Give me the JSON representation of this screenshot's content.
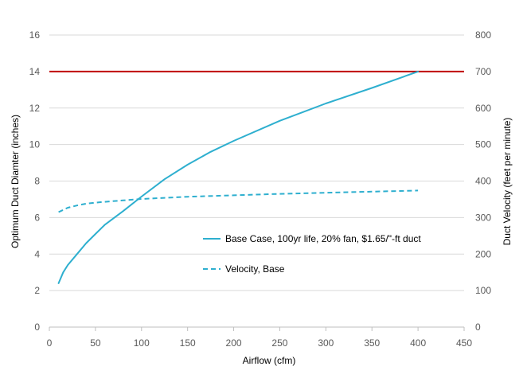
{
  "chart_data": {
    "type": "line",
    "title": "",
    "xlabel": "Airflow (cfm)",
    "ylabel": "Optimum Duct Diamter (inches)",
    "y2label": "Duct Velocity (feet per minute)",
    "xlim": [
      0,
      450
    ],
    "ylim": [
      0,
      16
    ],
    "y2lim": [
      0,
      800
    ],
    "x_ticks": [
      0,
      50,
      100,
      150,
      200,
      250,
      300,
      350,
      400,
      450
    ],
    "y_ticks": [
      0,
      2,
      4,
      6,
      8,
      10,
      12,
      14,
      16
    ],
    "y2_ticks": [
      0,
      100,
      200,
      300,
      400,
      500,
      600,
      700,
      800
    ],
    "grid": true,
    "legend_position": "center-right",
    "reference_line": {
      "axis": "y",
      "value": 14,
      "color": "#C00000"
    },
    "series": [
      {
        "name": "Base Case, 100yr life, 20% fan, $1.65/\"-ft duct",
        "axis": "left",
        "style": "solid",
        "color": "#2EAFCF",
        "x": [
          10,
          15,
          20,
          30,
          40,
          50,
          60,
          80,
          100,
          125,
          150,
          175,
          200,
          250,
          300,
          350,
          400
        ],
        "y": [
          2.4,
          3.0,
          3.4,
          4.0,
          4.6,
          5.1,
          5.6,
          6.35,
          7.15,
          8.1,
          8.9,
          9.6,
          10.2,
          11.3,
          12.25,
          13.1,
          14.0
        ]
      },
      {
        "name": "Velocity, Base",
        "axis": "right",
        "style": "dashed",
        "color": "#2EAFCF",
        "x": [
          10,
          20,
          30,
          40,
          50,
          60,
          80,
          100,
          125,
          150,
          200,
          250,
          300,
          350,
          400
        ],
        "y": [
          315,
          327,
          333,
          338,
          341,
          343,
          347,
          351,
          354,
          357,
          361,
          365,
          368,
          371,
          374
        ]
      }
    ]
  }
}
